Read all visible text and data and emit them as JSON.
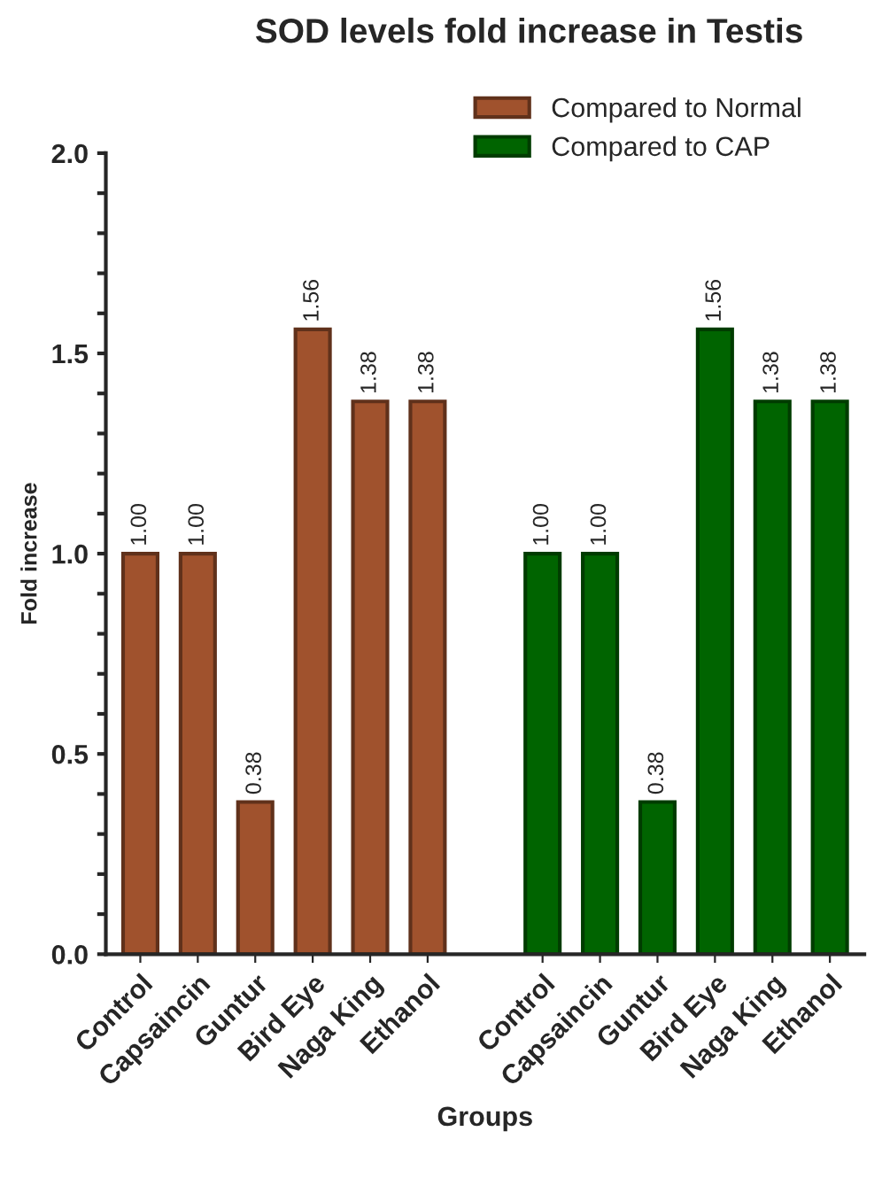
{
  "chart_data": {
    "type": "bar",
    "title": "SOD levels fold increase in Testis",
    "xlabel": "Groups",
    "ylabel": "Fold increase",
    "categories": [
      "Control",
      "Capsaincin",
      "Guntur",
      "Bird Eye",
      "Naga King",
      "Ethanol",
      null,
      "Control",
      "Capsaincin",
      "Guntur",
      "Bird Eye",
      "Naga King",
      "Ethanol"
    ],
    "series": [
      {
        "name": "Compared to Normal",
        "color": "#a0522d",
        "values": [
          1.0,
          1.0,
          0.38,
          1.56,
          1.38,
          1.38,
          null,
          null,
          null,
          null,
          null,
          null,
          null
        ],
        "value_labels": [
          "1.00",
          "1.00",
          "0.38",
          "1.56",
          "1.38",
          "1.38",
          null,
          null,
          null,
          null,
          null,
          null,
          null
        ]
      },
      {
        "name": "Compared to CAP",
        "color": "#006400",
        "values": [
          null,
          null,
          null,
          null,
          null,
          null,
          null,
          1.0,
          1.0,
          0.38,
          1.56,
          1.38,
          1.38
        ],
        "value_labels": [
          null,
          null,
          null,
          null,
          null,
          null,
          null,
          "1.00",
          "1.00",
          "0.38",
          "1.56",
          "1.38",
          "1.38"
        ]
      }
    ],
    "ylim": [
      0,
      2.0
    ],
    "yticks": [
      {
        "value": 0,
        "label": "0.0"
      },
      {
        "value": 0.1,
        "label": null
      },
      {
        "value": 0.2,
        "label": null
      },
      {
        "value": 0.3,
        "label": null
      },
      {
        "value": 0.4,
        "label": null
      },
      {
        "value": 0.5,
        "label": "0.5"
      },
      {
        "value": 0.6,
        "label": null
      },
      {
        "value": 0.7,
        "label": null
      },
      {
        "value": 0.8,
        "label": null
      },
      {
        "value": 0.9,
        "label": null
      },
      {
        "value": 1.0,
        "label": "1.0"
      },
      {
        "value": 1.1,
        "label": null
      },
      {
        "value": 1.2,
        "label": null
      },
      {
        "value": 1.3,
        "label": null
      },
      {
        "value": 1.4,
        "label": null
      },
      {
        "value": 1.5,
        "label": "1.5"
      },
      {
        "value": 1.6,
        "label": null
      },
      {
        "value": 1.7,
        "label": null
      },
      {
        "value": 1.8,
        "label": null
      },
      {
        "value": 1.9,
        "label": null
      },
      {
        "value": 2.0,
        "label": "2.0"
      }
    ],
    "grid": false,
    "legend": "top right"
  }
}
